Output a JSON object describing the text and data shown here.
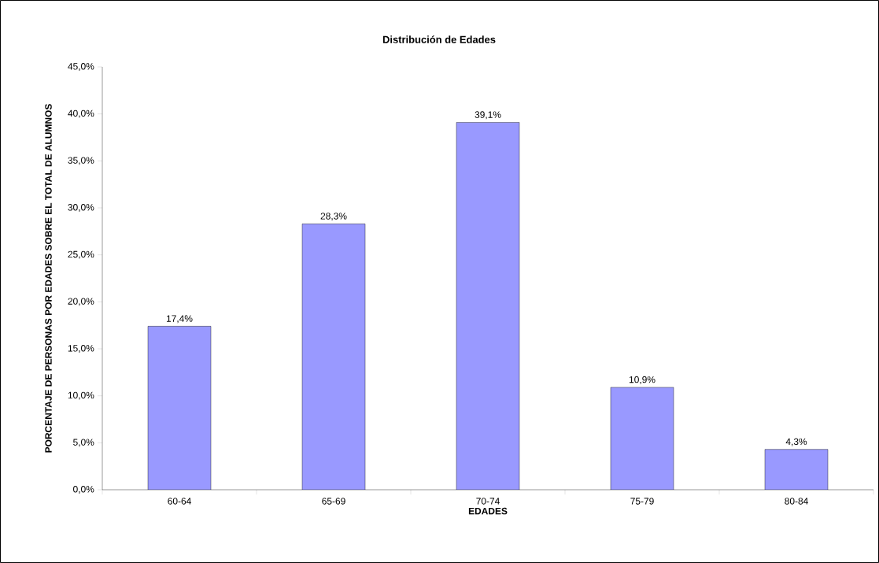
{
  "chart_data": {
    "type": "bar",
    "title": "Distribución de Edades",
    "xlabel": "EDADES",
    "ylabel": "PORCENTAJE DE PERSONAS POR EDADES SOBRE EL TOTAL DE ALUMNOS",
    "categories": [
      "60-64",
      "65-69",
      "70-74",
      "75-79",
      "80-84"
    ],
    "values": [
      17.4,
      28.3,
      39.1,
      10.9,
      4.3
    ],
    "value_labels": [
      "17,4%",
      "28,3%",
      "39,1%",
      "10,9%",
      "4,3%"
    ],
    "color": "#9999ff",
    "ylim": [
      0,
      45
    ],
    "yticks": [
      {
        "value": 0,
        "label": "0,0%"
      },
      {
        "value": 5,
        "label": "5,0%"
      },
      {
        "value": 10,
        "label": "10,0%"
      },
      {
        "value": 15,
        "label": "15,0%"
      },
      {
        "value": 20,
        "label": "20,0%"
      },
      {
        "value": 25,
        "label": "25,0%"
      },
      {
        "value": 30,
        "label": "30,0%"
      },
      {
        "value": 35,
        "label": "35,0%"
      },
      {
        "value": 40,
        "label": "40,0%"
      },
      {
        "value": 45,
        "label": "45,0%"
      }
    ],
    "grid": false
  }
}
